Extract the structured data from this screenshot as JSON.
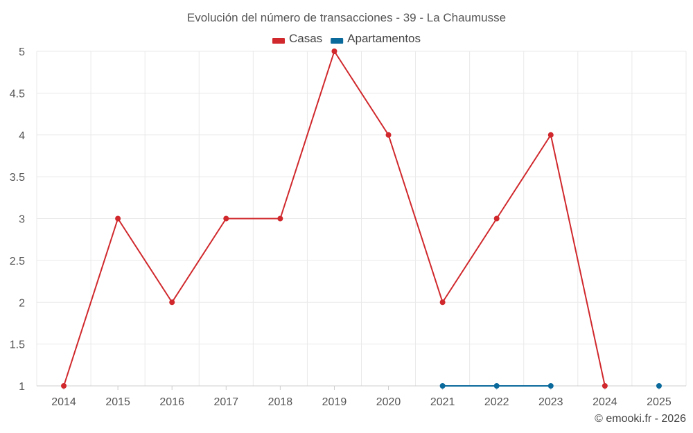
{
  "chart_data": {
    "type": "line",
    "title": "Evolución del número de transacciones - 39 - La Chaumusse",
    "categories": [
      "2014",
      "2015",
      "2016",
      "2017",
      "2018",
      "2019",
      "2020",
      "2021",
      "2022",
      "2023",
      "2024",
      "2025"
    ],
    "ylim": [
      1,
      5
    ],
    "yticks": [
      "1",
      "1.5",
      "2",
      "2.5",
      "3",
      "3.5",
      "4",
      "4.5",
      "5"
    ],
    "grid": true,
    "legend_position": "top",
    "series": [
      {
        "name": "Casas",
        "color": "#d0282c",
        "values": [
          1,
          3,
          2,
          3,
          3,
          5,
          4,
          2,
          3,
          4,
          1,
          null
        ]
      },
      {
        "name": "Apartamentos",
        "color": "#0b6a9c",
        "values": [
          null,
          null,
          null,
          null,
          null,
          null,
          null,
          1,
          1,
          1,
          null,
          1
        ]
      }
    ],
    "credit": "© emooki.fr - 2026"
  }
}
